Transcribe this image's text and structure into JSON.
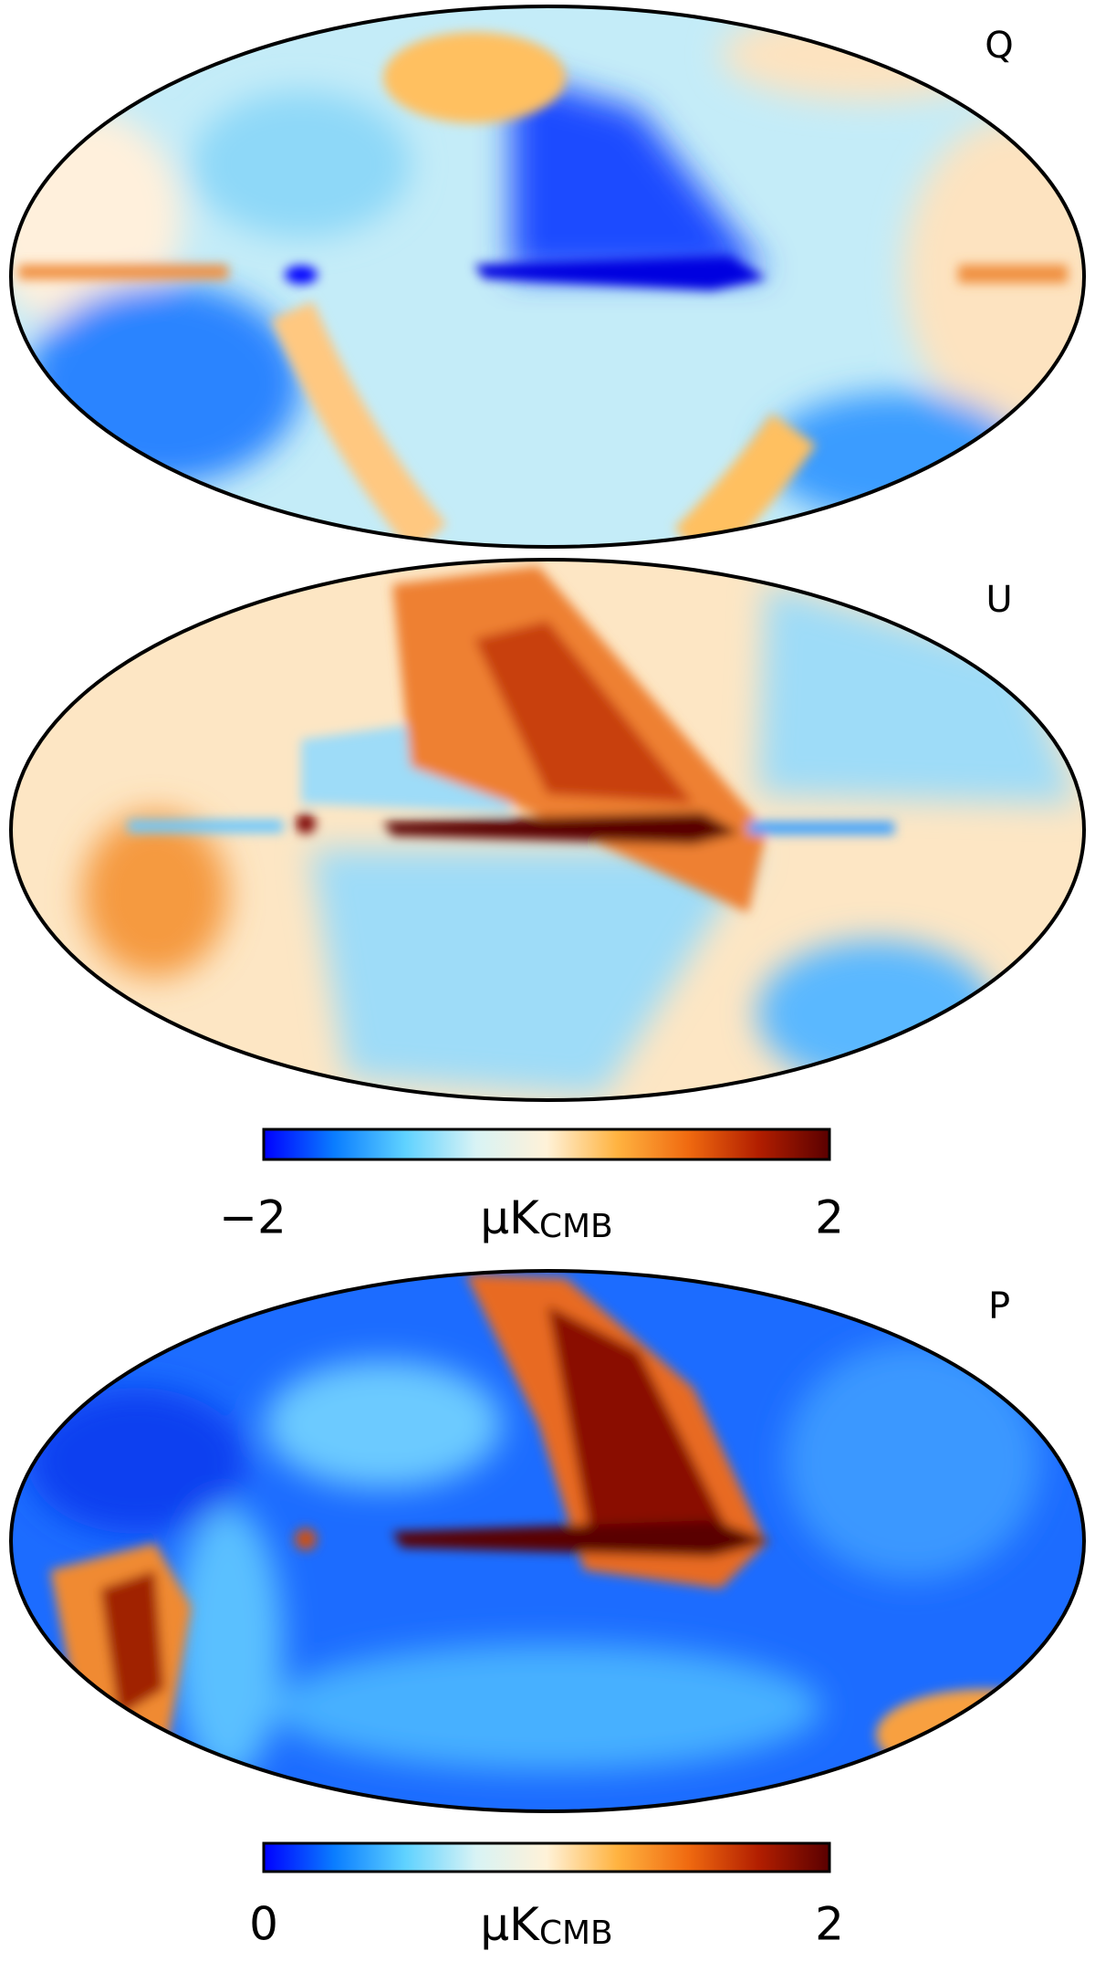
{
  "panels": [
    {
      "label": "Q"
    },
    {
      "label": "U"
    },
    {
      "label": "P"
    }
  ],
  "colorbars": [
    {
      "range": [
        -2,
        2
      ],
      "ticks": [
        {
          "value": -2,
          "label": "−2"
        },
        2
      ],
      "unit": {
        "main": "μK",
        "sub": "CMB"
      }
    },
    {
      "range": [
        0,
        2
      ],
      "ticks": [
        0,
        2
      ],
      "unit": {
        "main": "μK",
        "sub": "CMB"
      }
    }
  ],
  "colormap": [
    "#0000ff",
    "#0a7dff",
    "#5fd2ff",
    "#d8f3f5",
    "#fff2d8",
    "#ffb340",
    "#f06a10",
    "#b21e00",
    "#5a0000"
  ]
}
